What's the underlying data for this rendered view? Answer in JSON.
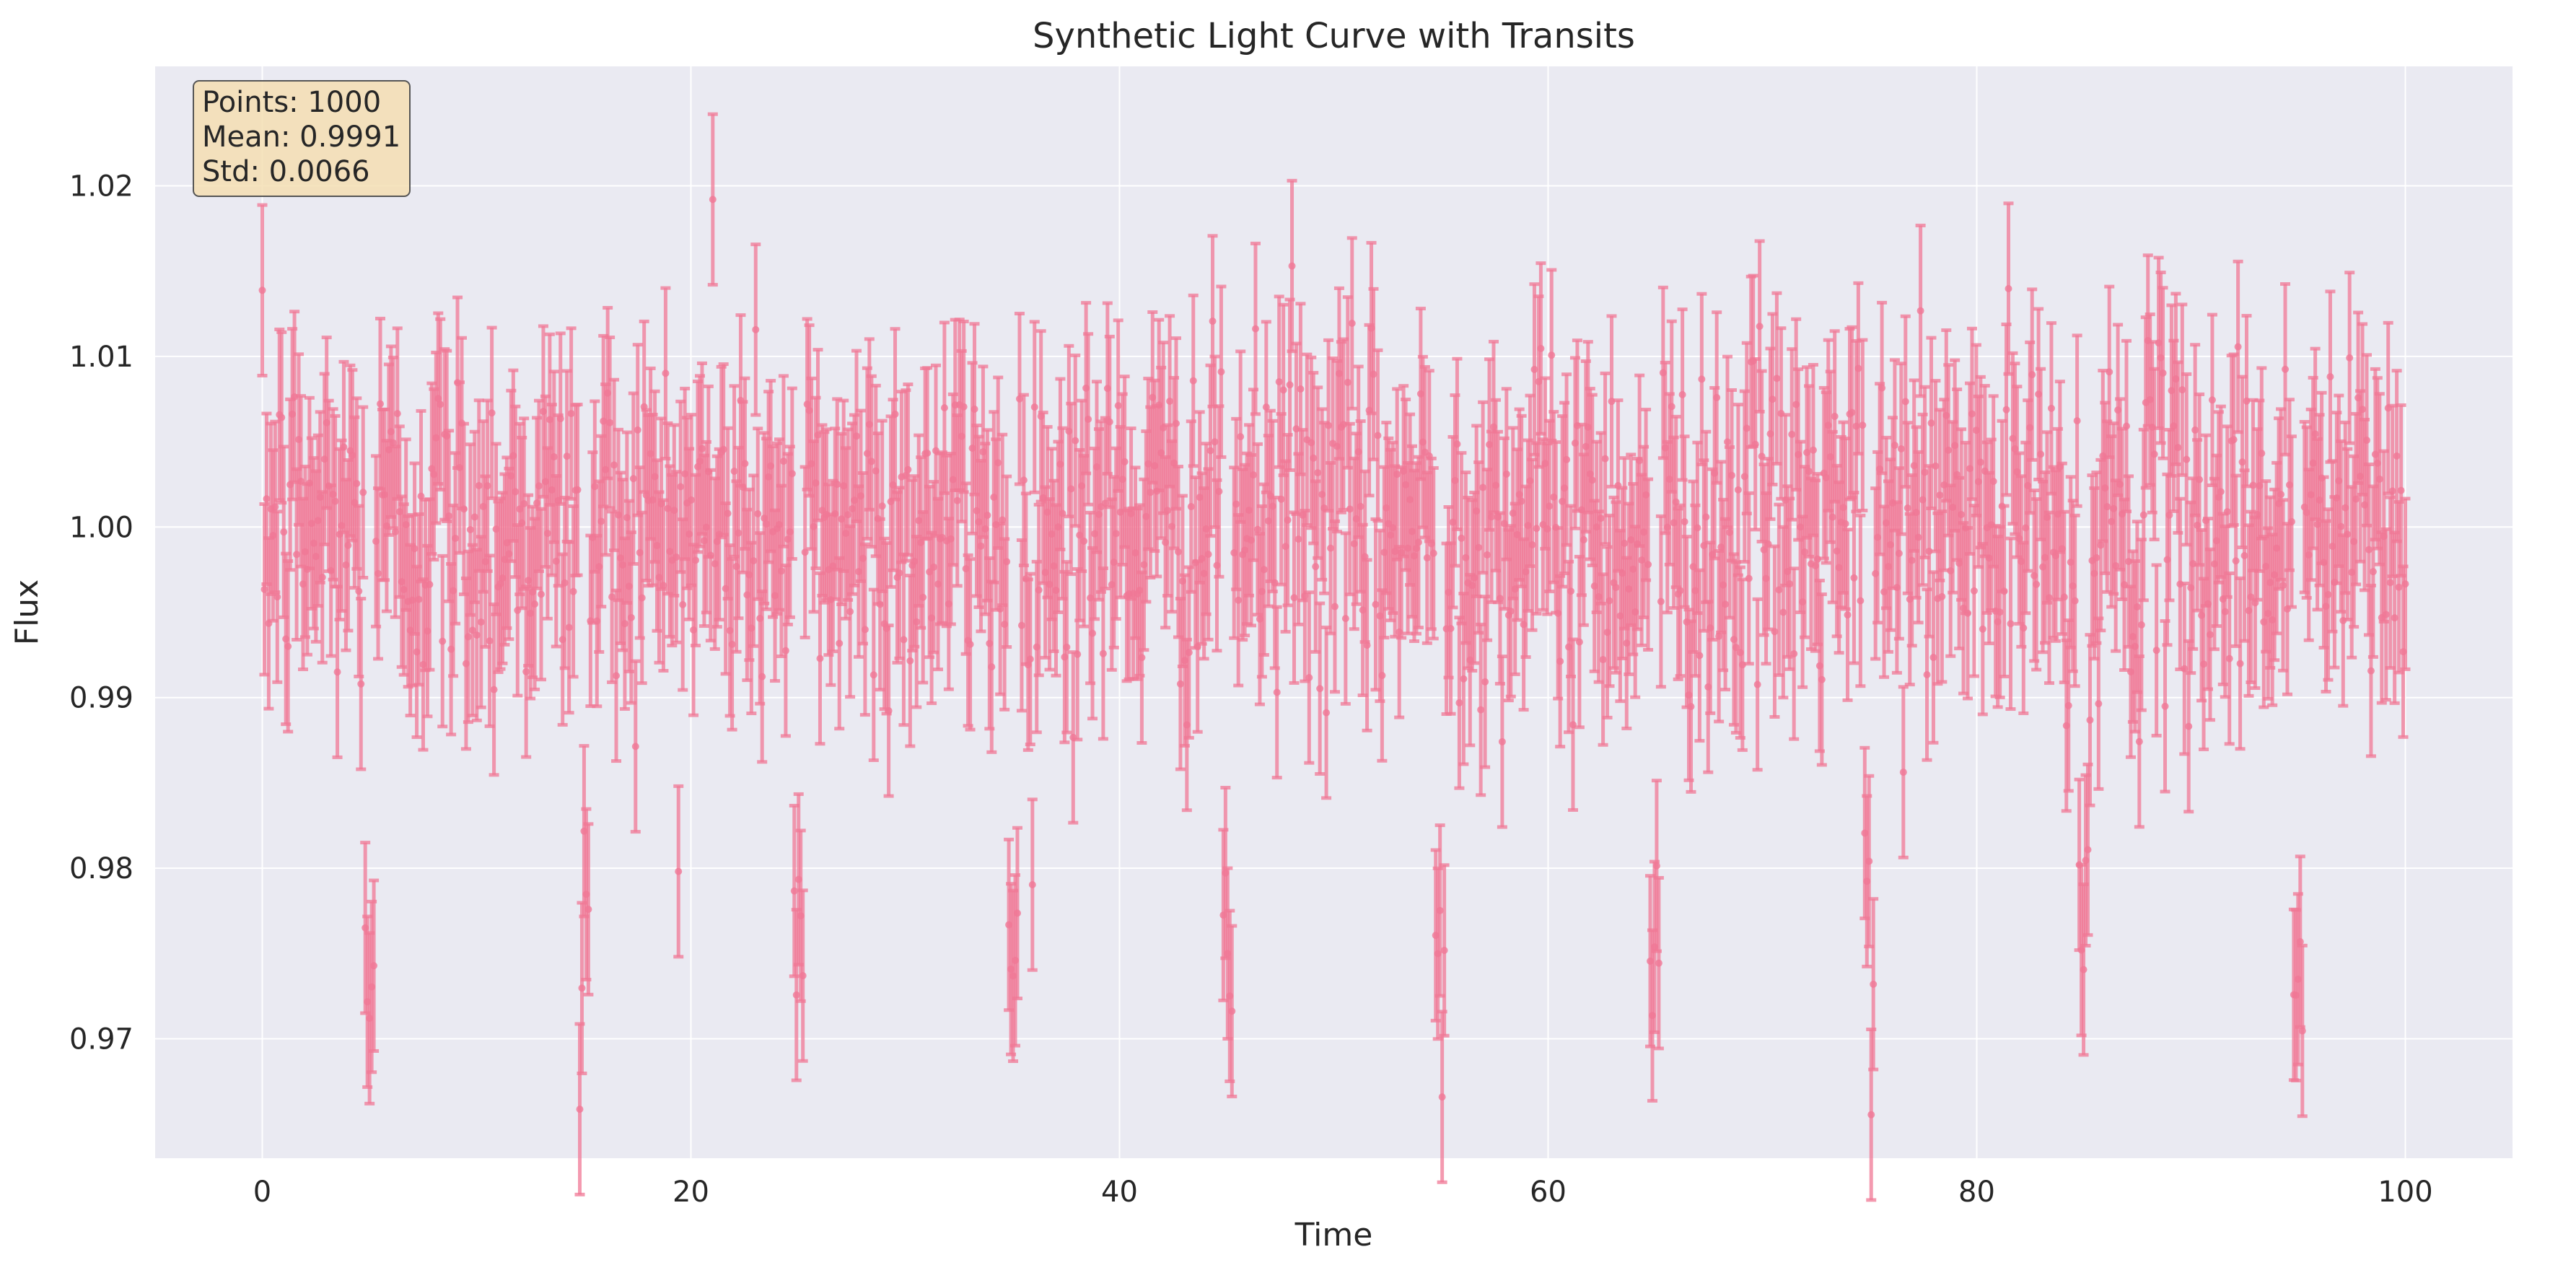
{
  "chart_data": {
    "type": "scatter",
    "style": "errorbar",
    "title": "Synthetic Light Curve with Transits",
    "xlabel": "Time",
    "ylabel": "Flux",
    "xlim": [
      -5,
      105
    ],
    "ylim": [
      0.963,
      1.027
    ],
    "xticks": [
      0,
      20,
      40,
      60,
      80,
      100
    ],
    "xtick_labels": [
      "0",
      "20",
      "40",
      "60",
      "80",
      "100"
    ],
    "yticks": [
      0.97,
      0.98,
      0.99,
      1.0,
      1.01,
      1.02
    ],
    "ytick_labels": [
      "0.97",
      "0.98",
      "0.99",
      "1.00",
      "1.01",
      "1.02"
    ],
    "grid": true,
    "colors": {
      "background": "#eaeaf2",
      "grid": "#ffffff",
      "series": "#f07896",
      "stats_box_fill": "#f5deb3",
      "stats_box_edge": "#555555"
    },
    "stats_box": {
      "placement": "top-left",
      "lines": [
        "Points: 1000",
        "Mean: 0.9991",
        "Std: 0.0066"
      ]
    },
    "series": [
      {
        "n_points": 1000,
        "x_range": [
          0,
          100
        ],
        "baseline_flux": 1.0,
        "noise_std": 0.005,
        "errorbar": 0.005,
        "transit_period": 10,
        "transit_first_center": 5,
        "transit_depth": 0.025,
        "transit_duration": 0.5,
        "highlights": [
          {
            "x": 21.0,
            "y": 1.0192
          },
          {
            "x": 48.0,
            "y": 1.0153
          },
          {
            "x": 5.0,
            "y": 0.9712
          },
          {
            "x": 25.2,
            "y": 0.9737
          },
          {
            "x": 45.0,
            "y": 0.975
          },
          {
            "x": 75.2,
            "y": 0.9732
          }
        ]
      }
    ]
  }
}
